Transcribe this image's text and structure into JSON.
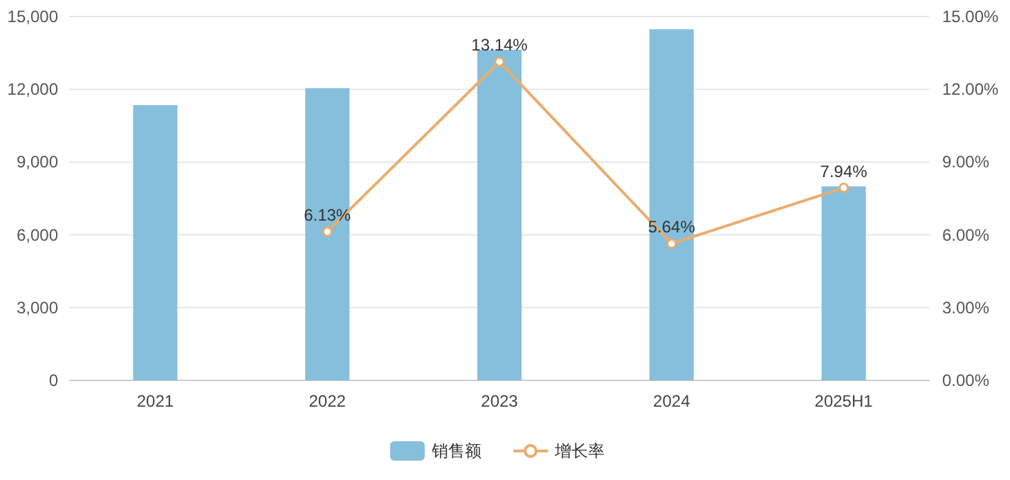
{
  "chart_data": {
    "type": "bar",
    "categories": [
      "2021",
      "2022",
      "2023",
      "2024",
      "2025H1"
    ],
    "series": [
      {
        "name": "销售额",
        "color": "#86bfdc",
        "values": [
          11350,
          12050,
          13630,
          14480,
          8000
        ]
      },
      {
        "name": "增长率",
        "type": "line",
        "axis": "y2",
        "color": "#e8ad6e",
        "marker": "circle",
        "values": [
          null,
          6.13,
          13.14,
          5.64,
          7.94
        ],
        "value_labels": [
          null,
          "6.13%",
          "13.14%",
          "5.64%",
          "7.94%"
        ]
      }
    ],
    "ylim": [
      0,
      15000
    ],
    "yticks": [
      0,
      {
        "value": 3000,
        "label": "3,000"
      },
      {
        "value": 6000,
        "label": "6,000"
      },
      {
        "value": 9000,
        "label": "9,000"
      },
      {
        "value": 12000,
        "label": "12,000"
      },
      {
        "value": 15000,
        "label": "15,000"
      }
    ],
    "y2lim": [
      0,
      15
    ],
    "y2ticks": [
      {
        "value": 0,
        "label": "0.00%"
      },
      {
        "value": 3,
        "label": "3.00%"
      },
      {
        "value": 6,
        "label": "6.00%"
      },
      {
        "value": 9,
        "label": "9.00%"
      },
      {
        "value": 12,
        "label": "12.00%"
      },
      {
        "value": 15,
        "label": "15.00%"
      }
    ],
    "grid": "y",
    "legend": "bottom"
  }
}
